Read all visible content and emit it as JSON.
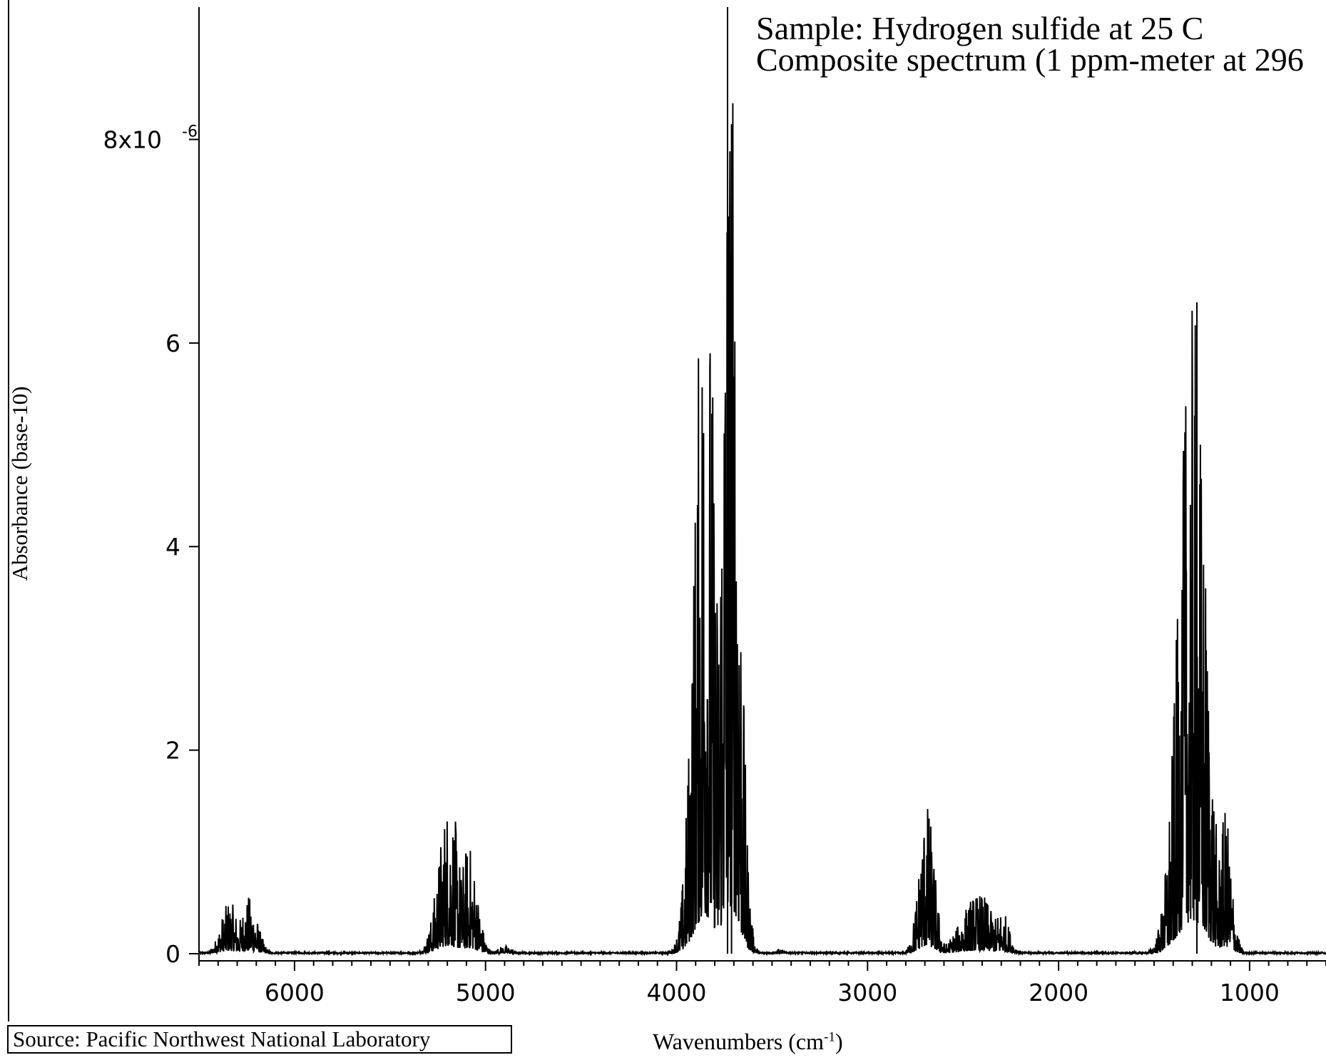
{
  "chart_data": {
    "type": "line",
    "title": "",
    "annotations": [
      "Sample: Hydrogen sulfide at 25 C",
      "Composite spectrum (1 ppm-meter at 296"
    ],
    "xlabel": "Wavenumbers (cm",
    "xlabel_sup": "-1",
    "xlabel_end": ")",
    "ylabel": "Absorbance (base-10)",
    "source": "Source: Pacific Northwest National Laboratory",
    "x_ticks": [
      {
        "value": 6000,
        "label": "6000"
      },
      {
        "value": 5000,
        "label": "5000"
      },
      {
        "value": 4000,
        "label": "4000"
      },
      {
        "value": 3000,
        "label": "3000"
      },
      {
        "value": 2000,
        "label": "2000"
      },
      {
        "value": 1000,
        "label": "1000"
      }
    ],
    "y_ticks": [
      {
        "value": 0,
        "label": "0"
      },
      {
        "value": 2e-06,
        "label": "2"
      },
      {
        "value": 4e-06,
        "label": "4"
      },
      {
        "value": 6e-06,
        "label": "6"
      },
      {
        "value": 8e-06,
        "label": "8x10",
        "sup": "-6"
      }
    ],
    "xlim": [
      6500,
      600
    ],
    "ylim": [
      0,
      9.3e-06
    ],
    "x_reversed": true,
    "grid": false,
    "line_color": "#000000",
    "bands": [
      {
        "center": 6340,
        "width": 45,
        "peak": 5.4e-07
      },
      {
        "center": 6240,
        "width": 45,
        "peak": 5.7e-07
      },
      {
        "center": 5190,
        "width": 55,
        "peak": 1.58e-06
      },
      {
        "center": 5090,
        "width": 45,
        "peak": 1.1e-06
      },
      {
        "center": 4900,
        "width": 40,
        "peak": 8e-08
      },
      {
        "center": 3850,
        "width": 55,
        "peak": 7.4e-06
      },
      {
        "center": 3720,
        "width": 45,
        "peak": 9.3e-06
      },
      {
        "center": 3460,
        "width": 25,
        "peak": 5e-08
      },
      {
        "center": 2690,
        "width": 40,
        "peak": 1.5e-06
      },
      {
        "center": 2420,
        "width": 90,
        "peak": 6e-07
      },
      {
        "center": 2300,
        "width": 40,
        "peak": 4.5e-07
      },
      {
        "center": 1300,
        "width": 70,
        "peak": 6.4e-06
      },
      {
        "center": 1130,
        "width": 35,
        "peak": 1.45e-06
      }
    ]
  }
}
